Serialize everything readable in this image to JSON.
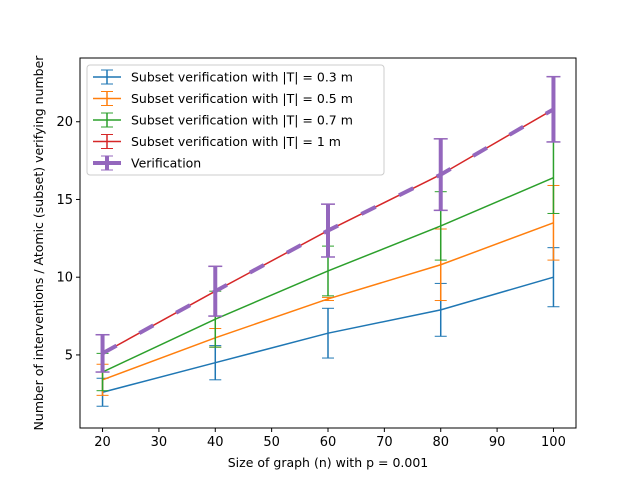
{
  "chart_data": {
    "type": "line",
    "title": "",
    "xlabel": "Size of graph (n) with p = 0.001",
    "ylabel": "Number of interventions / Atomic (subset) verifying number",
    "x": [
      20,
      40,
      60,
      80,
      100
    ],
    "xlim": [
      16,
      104
    ],
    "ylim": [
      0.3,
      24.1
    ],
    "xticks": [
      20,
      30,
      40,
      50,
      60,
      70,
      80,
      90,
      100
    ],
    "yticks": [
      5,
      10,
      15,
      20
    ],
    "legend_position": "top-left",
    "series": [
      {
        "name": "Subset verification with |T| = 0.3 m",
        "color": "#1f77b4",
        "style": "solid",
        "values": [
          2.6,
          4.5,
          6.4,
          7.9,
          10.0
        ],
        "errors": [
          0.9,
          1.1,
          1.6,
          1.7,
          1.9
        ]
      },
      {
        "name": "Subset verification with |T| = 0.5 m",
        "color": "#ff7f0e",
        "style": "solid",
        "values": [
          3.4,
          6.1,
          8.6,
          10.8,
          13.5
        ],
        "errors": [
          1.0,
          0.6,
          0.1,
          2.3,
          2.4
        ]
      },
      {
        "name": "Subset verification with |T| = 0.7 m",
        "color": "#2ca02c",
        "style": "solid",
        "values": [
          3.9,
          7.3,
          10.4,
          13.3,
          16.4
        ],
        "errors": [
          1.2,
          1.8,
          1.6,
          2.2,
          2.3
        ]
      },
      {
        "name": "Subset verification with |T| = 1 m",
        "color": "#d62728",
        "style": "solid",
        "values": [
          5.1,
          9.1,
          13.0,
          16.6,
          20.8
        ],
        "errors": [
          1.2,
          1.6,
          1.7,
          2.3,
          2.1
        ]
      },
      {
        "name": "Verification",
        "color": "#9467bd",
        "style": "dashed",
        "values": [
          5.1,
          9.1,
          13.0,
          16.6,
          20.8
        ],
        "errors": [
          1.2,
          1.6,
          1.7,
          2.3,
          2.1
        ]
      }
    ]
  }
}
